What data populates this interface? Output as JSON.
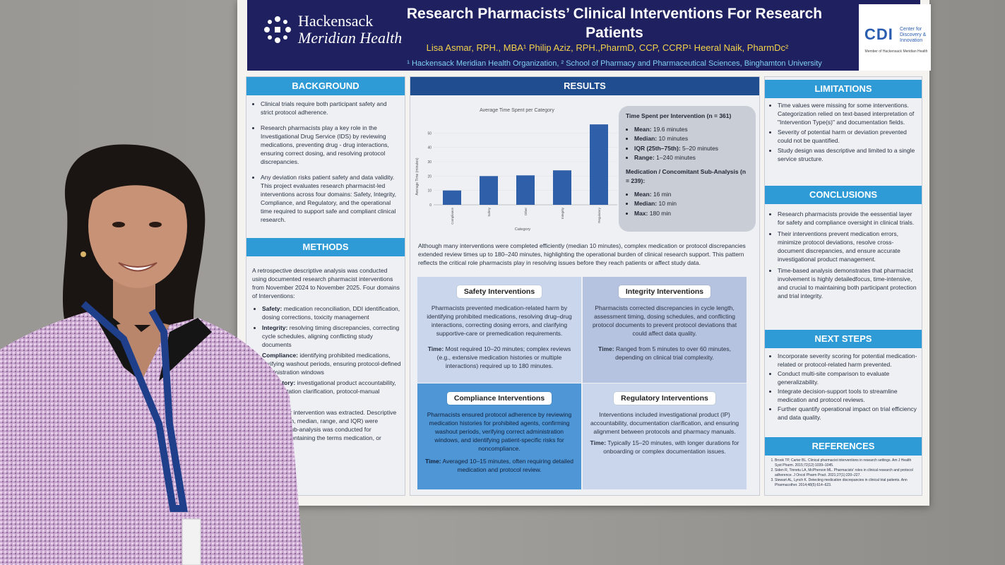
{
  "header": {
    "logo_line1": "Hackensack",
    "logo_line2": "Meridian Health",
    "title": "Research Pharmacists’ Clinical Interventions For Research Patients",
    "authors": "Lisa Asmar, RPH., MBA¹ Philip Aziz, RPH.,PharmD, CCP, CCRP¹ Heeral Naik, PharmDc²",
    "affiliations": "¹ Hackensack Meridian Health Organization, ² School of Pharmacy and Pharmaceutical Sciences, Binghamton University",
    "cdi_logo": "CDI",
    "cdi_side": "Center for Discovery & Innovation",
    "cdi_member": "Member of Hackensack Meridian Health"
  },
  "background": {
    "heading": "BACKGROUND",
    "bullets": [
      "Clinical trials require both participant safety and strict protocol adherence.",
      "Research pharmacists play a key role in the Investigational Drug Service (IDS) by reviewing medications, preventing drug - drug interactions, ensuring correct dosing, and resolving protocol discrepancies.",
      "Any deviation risks patient safety and data validity. This project evaluates research pharmacist-led interventions across four domains: Safety, Integrity, Compliance, and Regulatory, and the operational time required to support safe and compliant clinical research."
    ]
  },
  "methods": {
    "heading": "METHODS",
    "intro": "A retrospective descriptive analysis was conducted using documented research pharmacist interventions from November 2024 to November 2025. Four domains of Interventions:",
    "items": [
      {
        "label": "Safety:",
        "text": "medication reconciliation, DDI identification, dosing corrections, toxicity management"
      },
      {
        "label": "Integrity:",
        "text": "resolving timing discrepancies, correcting cycle schedules, aligning conflicting study documents"
      },
      {
        "label": "Compliance:",
        "text": "identifying prohibited medications, verifying washout periods, ensuring protocol-defined administration windows"
      },
      {
        "label": "Regulatory:",
        "text": "investigational product accountability, documentation clarification, protocol-manual alignment"
      }
    ],
    "outro": "Time spent per intervention was extracted. Descriptive statistics (mean, median, range, and IQR) were calculated. A sub-analysis was conducted for interventions containing the terms medication, or concomitant."
  },
  "results": {
    "heading": "RESULTS",
    "summary": "Although many interventions were completed efficiently (median 10 minutes), complex medication or protocol discrepancies extended review times up to 180–240 minutes, highlighting the operational burden of clinical research support. This pattern reflects the critical role pharmacists play in resolving issues before they reach patients or affect study data.",
    "stats": {
      "heading1": "Time Spent per Intervention (n = 361)",
      "list1": [
        {
          "k": "Mean:",
          "v": "19.6 minutes"
        },
        {
          "k": "Median:",
          "v": "10 minutes"
        },
        {
          "k": "IQR (25th–75th):",
          "v": "5–20 minutes"
        },
        {
          "k": "Range:",
          "v": "1–240 minutes"
        }
      ],
      "heading2": "Medication / Concomitant Sub-Analysis (n = 239):",
      "list2": [
        {
          "k": "Mean:",
          "v": "16 min"
        },
        {
          "k": "Median:",
          "v": "10 min"
        },
        {
          "k": "Max:",
          "v": "180 min"
        }
      ]
    },
    "quads": [
      {
        "title": "Safety Interventions",
        "body": "Pharmacists prevented medication-related harm by identifying prohibited medications, resolving drug–drug interactions, correcting dosing errors, and clarifying supportive-care or premedication requirements.",
        "time_label": "Time:",
        "time": "Most required 10–20 minutes; complex reviews (e.g., extensive medication histories or multiple interactions) required up to 180 minutes."
      },
      {
        "title": "Integrity Interventions",
        "body": "Pharmacists corrected discrepancies in cycle length, assessment timing, dosing schedules, and conflicting protocol documents to prevent protocol deviations that could affect data quality.",
        "time_label": "Time:",
        "time": "Ranged from 5 minutes to over 60 minutes, depending on clinical trial complexity."
      },
      {
        "title": "Compliance Interventions",
        "body": "Pharmacists ensured protocol adherence by reviewing medication histories for prohibited agents, confirming washout periods, verifying correct administration windows, and identifying patient-specific risks for noncompliance.",
        "time_label": "Time:",
        "time": "Averaged 10–15 minutes, often requiring detailed medication and protocol review."
      },
      {
        "title": "Regulatory Interventions",
        "body": "Interventions included investigational product (IP) accountability, documentation clarification, and ensuring alignment between protocols and pharmacy manuals.",
        "time_label": "Time:",
        "time": "Typically 15–20 minutes, with longer durations for onboarding or complex documentation issues."
      }
    ]
  },
  "chart_data": {
    "type": "bar",
    "title": "Average Time Spent per Category",
    "xlabel": "Category",
    "ylabel": "Average Time (minutes)",
    "categories": [
      "Compliance",
      "Safety",
      "Other",
      "Integrity",
      "Regulatory"
    ],
    "values": [
      10,
      20,
      20.5,
      24,
      56
    ],
    "ylim": [
      0,
      60
    ],
    "yticks": [
      "0",
      "10",
      "20",
      "30",
      "40",
      "50"
    ],
    "bar_color": "#2f5fa8"
  },
  "limitations": {
    "heading": "LIMITATIONS",
    "bullets": [
      "Time values were missing for some interventions. Categorization relied on text-based interpretation of \"Intervention Type(s)\" and documentation fields.",
      "Severity of potential harm or deviation prevented could not be quantified.",
      "Study design was descriptive and limited to a single service structure."
    ]
  },
  "conclusions": {
    "heading": "CONCLUSIONS",
    "bullets": [
      "Research pharmacists provide the eessential layer for safety and compliance oversight in clinical trials.",
      "Their interventions prevent medication errors, minimize protocol deviations, resolve cross-document discrepancies, and ensure accurate investigational product management.",
      "Time-based analysis demonstrates that pharmacist involvement is highly detailedfocus, time-intensive, and crucial to maintaining both participant protection and trial integrity."
    ]
  },
  "next_steps": {
    "heading": "NEXT STEPS",
    "bullets": [
      "Incorporate severity scoring for potential medication-related or protocol-related harm prevented.",
      "Conduct multi-site comparison to evaluate generalizability.",
      "Integrate decision-support tools to streamline medication and protocol reviews.",
      "Further quantify operational impact on trial efficiency and data quality."
    ]
  },
  "references": {
    "heading": "REFERENCES",
    "items": [
      "Brook TP, Carter BL. Clinical pharmacist interventions in research settings. Am J Health Syst Pharm. 2015;72(12):1039–1045.",
      "Siden R, Tinnetu LA, McPherson ML. Pharmacists' roles in clinical research and protocol adherence. J Oncol Pharm Pract. 2021;27(1):220–227.",
      "Stewart AL, Lynch K. Detecting medication discrepancies in clinical trial patients. Ann Pharmacother. 2014;48(5):614–623."
    ]
  },
  "colors": {
    "header_bg": "#1f2060",
    "section_blue": "#2f9bd6",
    "section_dark": "#1f4d8f",
    "authors_gold": "#f2d24b"
  }
}
